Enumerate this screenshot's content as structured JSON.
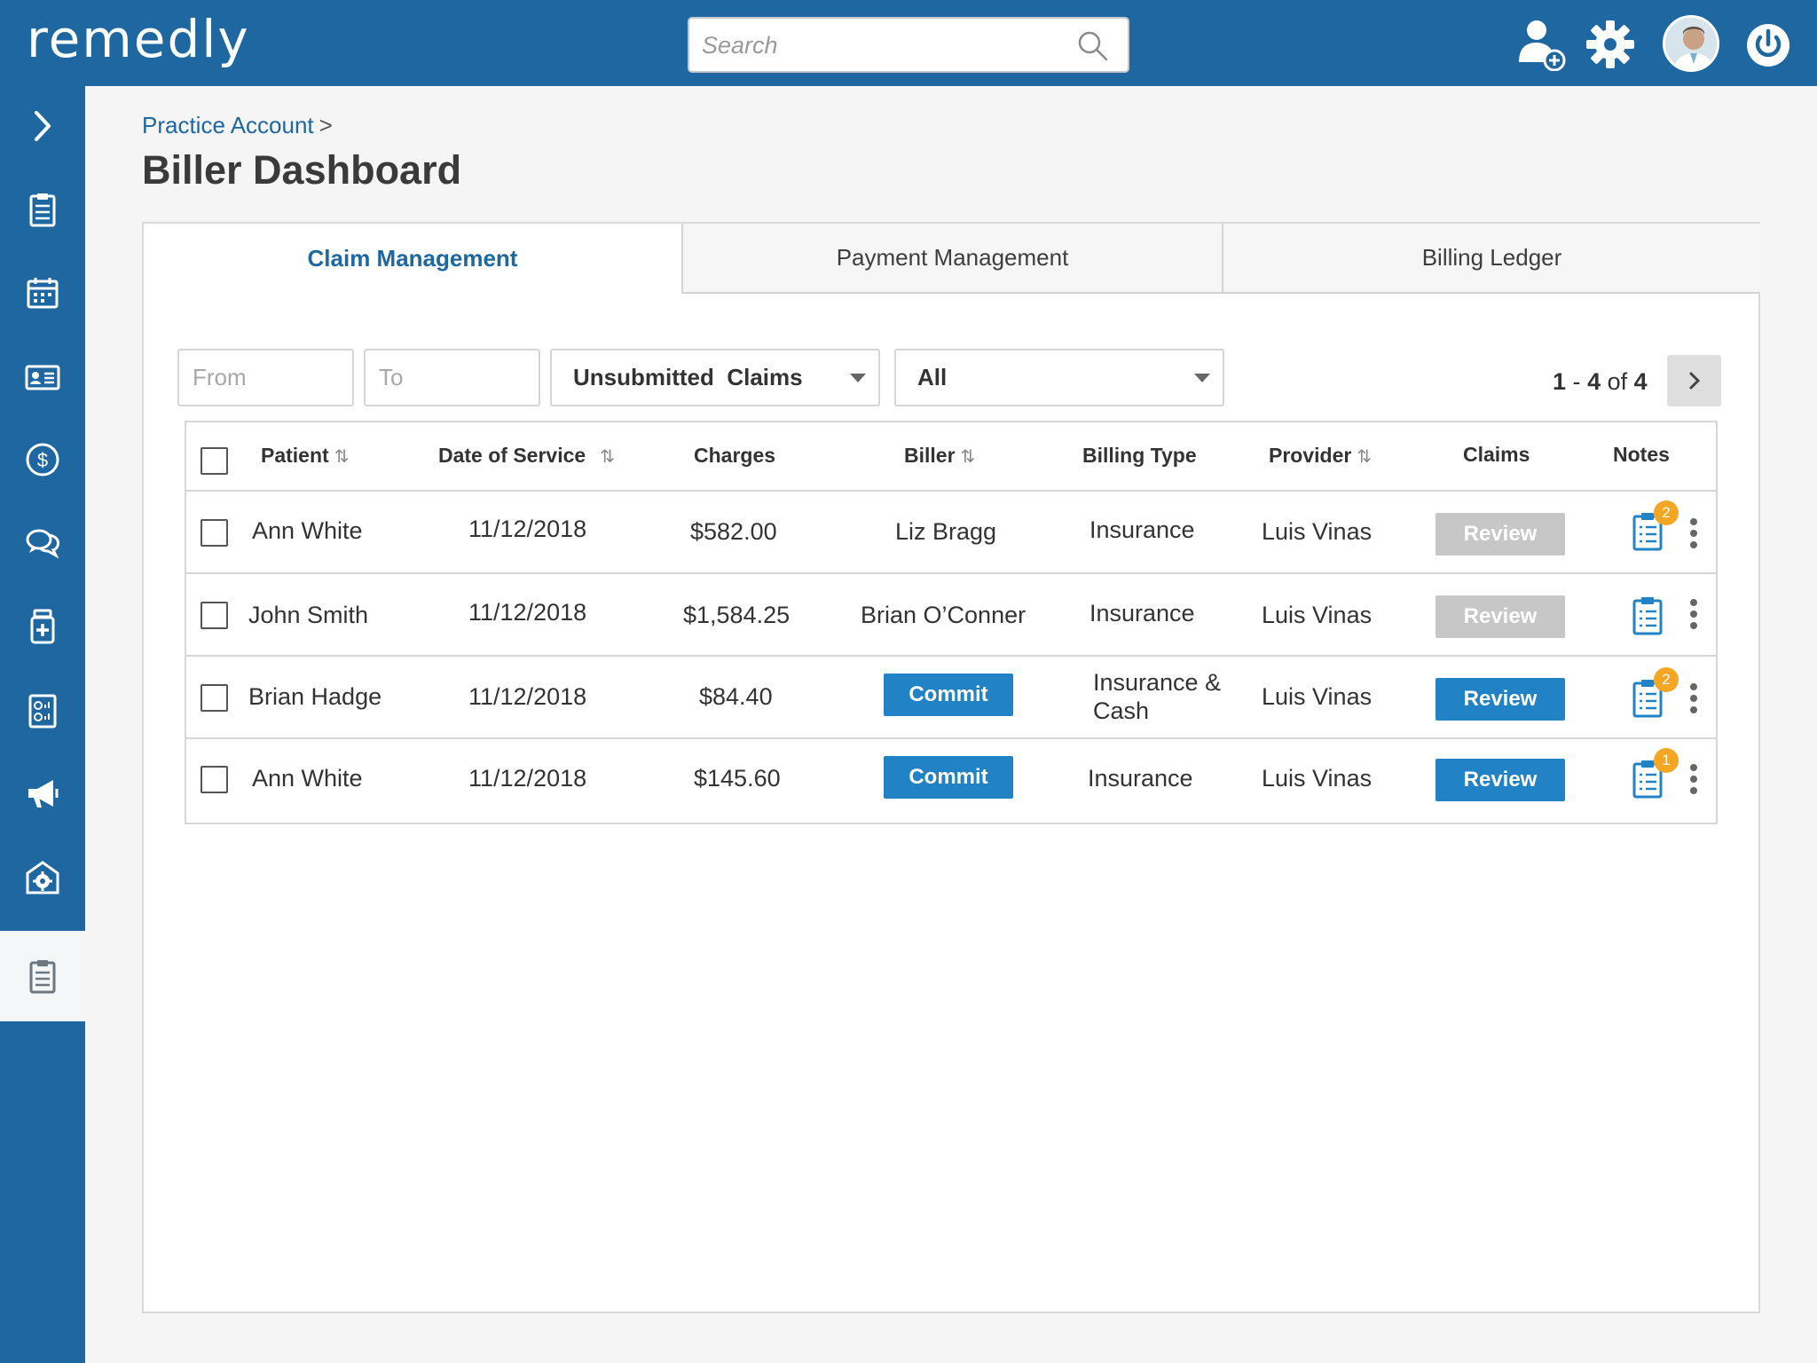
{
  "app": {
    "logo": "remedly"
  },
  "search": {
    "placeholder": "Search"
  },
  "breadcrumb": {
    "parent": "Practice Account",
    "separator": ">"
  },
  "page": {
    "title": "Biller Dashboard"
  },
  "tabs": [
    {
      "label": "Claim Management",
      "active": true
    },
    {
      "label": "Payment Management",
      "active": false
    },
    {
      "label": "Billing Ledger",
      "active": false
    }
  ],
  "filters": {
    "from_placeholder": "From",
    "to_placeholder": "To",
    "claim_status": "Unsubmitted  Claims",
    "category": "All"
  },
  "pager": {
    "start": "1",
    "dash": "-",
    "end": "4",
    "of": "of",
    "total": "4"
  },
  "table": {
    "headers": {
      "patient": "Patient",
      "date_of_service": "Date of Service",
      "charges": "Charges",
      "biller": "Biller",
      "billing_type": "Billing Type",
      "provider": "Provider",
      "claims": "Claims",
      "notes": "Notes"
    },
    "rows": [
      {
        "patient": "Ann White",
        "date": "11/12/2018",
        "charges": "$582.00",
        "biller": "Liz Bragg",
        "billing_type": "Insurance",
        "billing_type_2": "",
        "provider": "Luis Vinas",
        "claims_label": "Review",
        "claims_enabled": false,
        "notes_badge": "2"
      },
      {
        "patient": "John Smith",
        "date": "11/12/2018",
        "charges": "$1,584.25",
        "biller": "Brian O’Conner",
        "billing_type": "Insurance",
        "billing_type_2": "",
        "provider": "Luis Vinas",
        "claims_label": "Review",
        "claims_enabled": false,
        "notes_badge": ""
      },
      {
        "patient": "Brian Hadge",
        "date": "11/12/2018",
        "charges": "$84.40",
        "biller": "Commit",
        "billing_type": "Insurance &",
        "billing_type_2": "Cash",
        "provider": "Luis Vinas",
        "claims_label": "Review",
        "claims_enabled": true,
        "notes_badge": "2"
      },
      {
        "patient": "Ann White",
        "date": "11/12/2018",
        "charges": "$145.60",
        "biller": "Commit",
        "billing_type": "Insurance",
        "billing_type_2": "",
        "provider": "Luis Vinas",
        "claims_label": "Review",
        "claims_enabled": true,
        "notes_badge": "1"
      }
    ]
  },
  "colors": {
    "brand": "#1e67a0",
    "button": "#2282c6",
    "disabled": "#c7c7c7",
    "badge": "#f5a623"
  },
  "icons": {
    "top": [
      "add-user-icon",
      "gear-icon",
      "avatar",
      "power-icon"
    ],
    "sidebar": [
      "chevron-right-icon",
      "clipboard-list-icon",
      "calendar-icon",
      "id-card-icon",
      "dollar-icon",
      "chat-icon",
      "medicine-icon",
      "report-icon",
      "megaphone-icon",
      "settings-building-icon",
      "clipboard-list-icon"
    ]
  }
}
